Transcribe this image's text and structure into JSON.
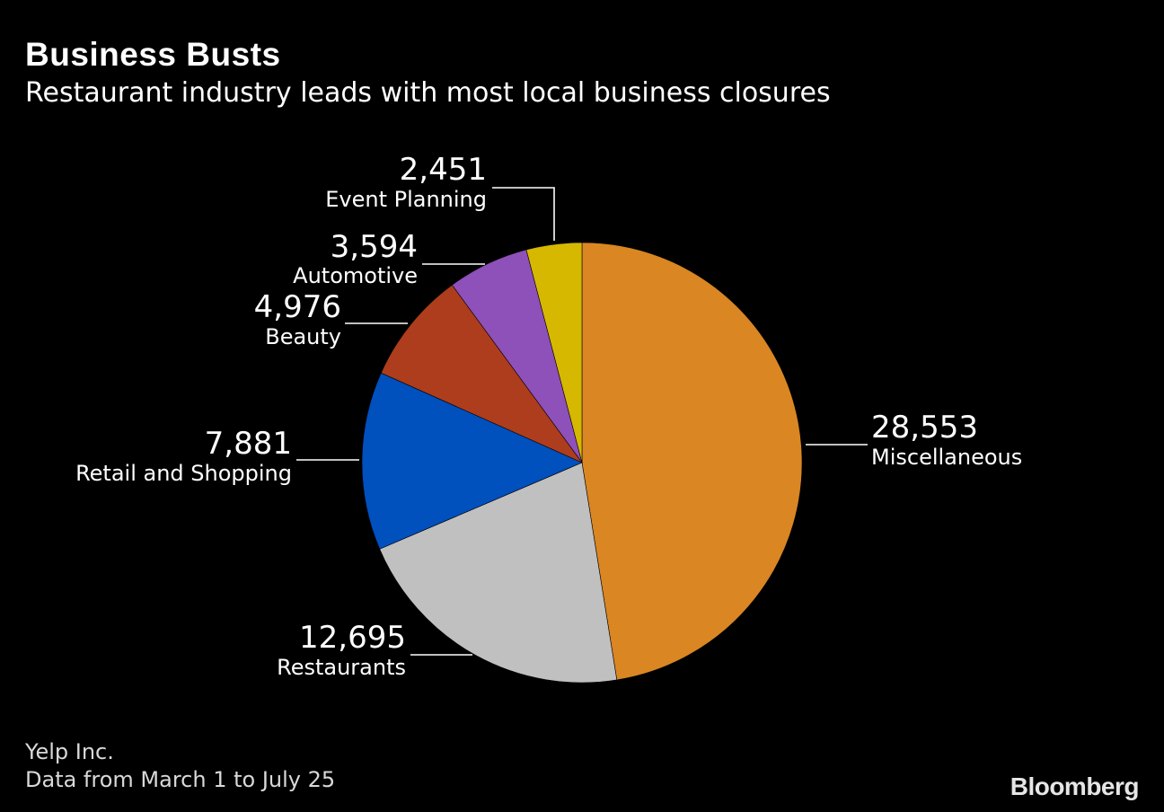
{
  "header": {
    "title": "Business Busts",
    "subtitle": "Restaurant industry leads with most local business closures"
  },
  "chart_data": {
    "type": "pie",
    "title": "Business Busts",
    "subtitle": "Restaurant industry leads with most local business closures",
    "slices": [
      {
        "name": "Miscellaneous",
        "label": "28,553",
        "value": 28553,
        "color": "#d98623",
        "label_side": "right"
      },
      {
        "name": "Restaurants",
        "label": "12,695",
        "value": 12695,
        "color": "#c0c0c0",
        "label_side": "left"
      },
      {
        "name": "Retail and Shopping",
        "label": "7,881",
        "value": 7881,
        "color": "#0050be",
        "label_side": "left"
      },
      {
        "name": "Beauty",
        "label": "4,976",
        "value": 4976,
        "color": "#ad3d1c",
        "label_side": "left"
      },
      {
        "name": "Automotive",
        "label": "3,594",
        "value": 3594,
        "color": "#8e50b9",
        "label_side": "left"
      },
      {
        "name": "Event Planning",
        "label": "2,451",
        "value": 2451,
        "color": "#d6b800",
        "label_side": "left"
      }
    ],
    "start": "12 o'clock",
    "direction": "clockwise"
  },
  "footer": {
    "source": "Yelp Inc.",
    "note": "Data from March 1 to July 25",
    "brand": "Bloomberg"
  }
}
